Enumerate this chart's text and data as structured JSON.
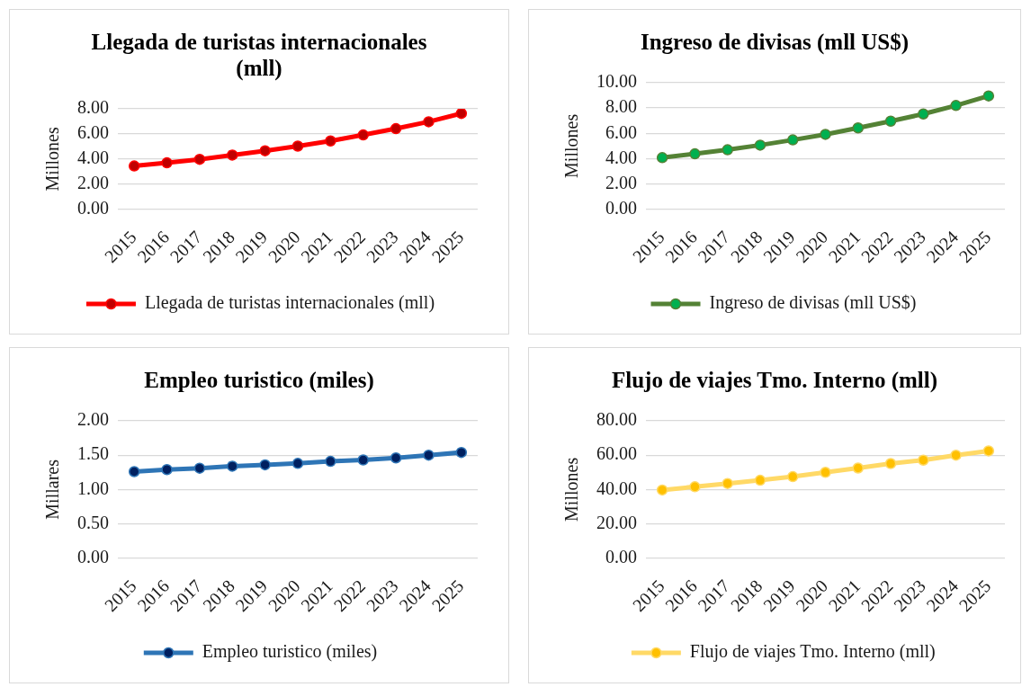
{
  "chart_data": [
    {
      "type": "line",
      "title": "Llegada de turistas internacionales (mll)",
      "ylabel": "Millones",
      "categories": [
        "2015",
        "2016",
        "2017",
        "2018",
        "2019",
        "2020",
        "2021",
        "2022",
        "2023",
        "2024",
        "2025"
      ],
      "series": [
        {
          "name": "Llegada de turistas internacionales (mll)",
          "color": "#ff0000",
          "colors": [
            "#c00000",
            "#c00000",
            "#c00000",
            "#c00000",
            "#c00000",
            "#c00000",
            "#c00000",
            "#c00000",
            "#c00000",
            "#c00000",
            "#c00000"
          ],
          "values": [
            3.45,
            3.7,
            3.98,
            4.32,
            4.66,
            5.03,
            5.44,
            5.92,
            6.42,
            6.97,
            7.63
          ]
        }
      ],
      "ylim": [
        0,
        8
      ],
      "yticks": [
        {
          "value": 0,
          "label": "0.00"
        },
        {
          "value": 2,
          "label": "2.00"
        },
        {
          "value": 4,
          "label": "4.00"
        },
        {
          "value": 6,
          "label": "6.00"
        },
        {
          "value": 8,
          "label": "8.00"
        }
      ],
      "grid": "y",
      "legend": "bottom",
      "marker": "circle"
    },
    {
      "type": "line",
      "title": "Ingreso de divisas (mll US$)",
      "ylabel": "Millones",
      "categories": [
        "2015",
        "2016",
        "2017",
        "2018",
        "2019",
        "2020",
        "2021",
        "2022",
        "2023",
        "2024",
        "2025"
      ],
      "series": [
        {
          "name": "Ingreso de divisas (mll US$)",
          "color": "#548235",
          "colors": [
            "#00b050",
            "#00b050",
            "#00b050",
            "#00b050",
            "#00b050",
            "#00b050",
            "#00b050",
            "#00b050",
            "#00b050",
            "#00b050",
            "#00b050"
          ],
          "values": [
            4.08,
            4.38,
            4.7,
            5.07,
            5.48,
            5.92,
            6.43,
            6.96,
            7.53,
            8.2,
            8.96
          ]
        }
      ],
      "ylim": [
        0,
        10
      ],
      "yticks": [
        {
          "value": 0,
          "label": "0.00"
        },
        {
          "value": 2,
          "label": "2.00"
        },
        {
          "value": 4,
          "label": "4.00"
        },
        {
          "value": 6,
          "label": "6.00"
        },
        {
          "value": 8,
          "label": "8.00"
        },
        {
          "value": 10,
          "label": "10.00"
        }
      ],
      "grid": "y",
      "legend": "bottom",
      "marker": "circle"
    },
    {
      "type": "line",
      "title": "Empleo turistico (miles)",
      "ylabel": "Millares",
      "categories": [
        "2015",
        "2016",
        "2017",
        "2018",
        "2019",
        "2020",
        "2021",
        "2022",
        "2023",
        "2024",
        "2025"
      ],
      "series": [
        {
          "name": "Empleo turistico (miles)",
          "color": "#2e75b6",
          "colors": [
            "#002060",
            "#002060",
            "#002060",
            "#002060",
            "#002060",
            "#002060",
            "#002060",
            "#002060",
            "#002060",
            "#002060",
            "#002060"
          ],
          "values": [
            1.26,
            1.29,
            1.31,
            1.34,
            1.36,
            1.38,
            1.41,
            1.43,
            1.46,
            1.5,
            1.54
          ]
        }
      ],
      "ylim": [
        0,
        2
      ],
      "yticks": [
        {
          "value": 0,
          "label": "0.00"
        },
        {
          "value": 0.5,
          "label": "0.50"
        },
        {
          "value": 1,
          "label": "1.00"
        },
        {
          "value": 1.5,
          "label": "1.50"
        },
        {
          "value": 2,
          "label": "2.00"
        }
      ],
      "grid": "y",
      "legend": "bottom",
      "marker": "circle"
    },
    {
      "type": "line",
      "title": "Flujo de viajes Tmo. Interno (mll)",
      "ylabel": "Millones",
      "categories": [
        "2015",
        "2016",
        "2017",
        "2018",
        "2019",
        "2020",
        "2021",
        "2022",
        "2023",
        "2024",
        "2025"
      ],
      "series": [
        {
          "name": "Flujo de viajes Tmo. Interno (mll)",
          "color": "#ffd966",
          "colors": [
            "#ffc000",
            "#ffc000",
            "#ffc000",
            "#ffc000",
            "#ffc000",
            "#ffc000",
            "#ffc000",
            "#ffc000",
            "#ffc000",
            "#ffc000",
            "#ffc000"
          ],
          "values": [
            39.7,
            41.6,
            43.5,
            45.4,
            47.5,
            50.0,
            52.5,
            55.1,
            57.1,
            60.0,
            62.5
          ]
        }
      ],
      "ylim": [
        0,
        80
      ],
      "yticks": [
        {
          "value": 0,
          "label": "0.00"
        },
        {
          "value": 20,
          "label": "20.00"
        },
        {
          "value": 40,
          "label": "40.00"
        },
        {
          "value": 60,
          "label": "60.00"
        },
        {
          "value": 80,
          "label": "80.00"
        }
      ],
      "grid": "y",
      "legend": "bottom",
      "marker": "circle"
    }
  ]
}
